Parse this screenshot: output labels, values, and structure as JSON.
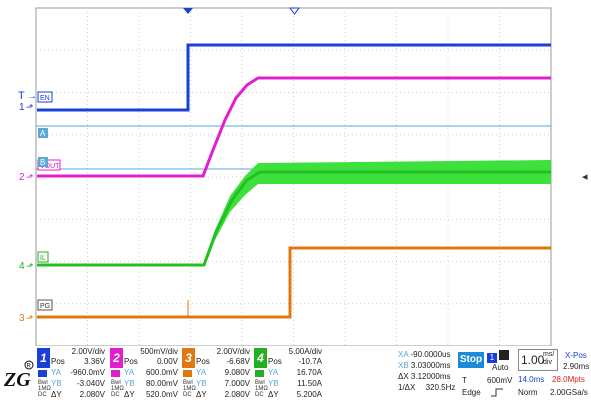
{
  "markers": {
    "trigger_label": "T",
    "ch1_label": "1",
    "ch2_label": "2",
    "ch4_label": "4",
    "ch3_label": "3",
    "tag_en": "EN",
    "tag_vout": "VOUT",
    "tag_il": "IL",
    "tag_pg": "PG",
    "cursor_a": "A",
    "cursor_b": "B"
  },
  "channels": [
    {
      "num": "1",
      "color": "#1a3fd6",
      "scale": "2.00V/div",
      "pos_label": "Pos",
      "pos": "3.36V",
      "ya_label": "YA",
      "ya": "-960.0mV",
      "yb_label": "YB",
      "yb": "-3.040V",
      "dy_label": "ΔY",
      "dy": "2.080V"
    },
    {
      "num": "2",
      "color": "#e020d0",
      "scale": "500mV/div",
      "pos_label": "Pos",
      "pos": "0.00V",
      "ya_label": "YA",
      "ya": "600.0mV",
      "yb_label": "YB",
      "yb": "80.00mV",
      "dy_label": "ΔY",
      "dy": "520.0mV"
    },
    {
      "num": "3",
      "color": "#e07810",
      "scale": "2.00V/div",
      "pos_label": "Pos",
      "pos": "-6.68V",
      "ya_label": "YA",
      "ya": "9.080V",
      "yb_label": "YB",
      "yb": "7.000V",
      "dy_label": "ΔY",
      "dy": "2.080V"
    },
    {
      "num": "4",
      "color": "#20b020",
      "scale": "5.00A/div",
      "pos_label": "Pos",
      "pos": "-10.7A",
      "ya_label": "YA",
      "ya": "16.70A",
      "yb_label": "YB",
      "yb": "11.50A",
      "dy_label": "ΔY",
      "dy": "5.200A"
    }
  ],
  "mini_labels": {
    "a": "Bwl",
    "b": "1MΩ",
    "c": "DC"
  },
  "cursor_readout": {
    "xa_label": "XA",
    "xa": "-90.0000us",
    "xb_label": "XB",
    "xb": "3.03000ms",
    "dx_label": "ΔX",
    "dx": "3.12000ms",
    "inv_label": "1/ΔX",
    "inv": "320.5Hz"
  },
  "run_state": "Stop",
  "trigger": {
    "source_num": "1",
    "mode": "Auto",
    "type_label": "T",
    "level": "600mV",
    "edge_label": "Edge"
  },
  "timebase": {
    "scale_value": "1.00",
    "scale_unit_top": "ms/",
    "scale_unit_bottom": "div",
    "xpos_label": "X-Pos",
    "xpos": "2.90ms",
    "window": "14.0ms",
    "points": "28.0Mpts",
    "acq_mode": "Norm",
    "rate": "2.00GSa/s"
  },
  "right_arrow": "◂"
}
